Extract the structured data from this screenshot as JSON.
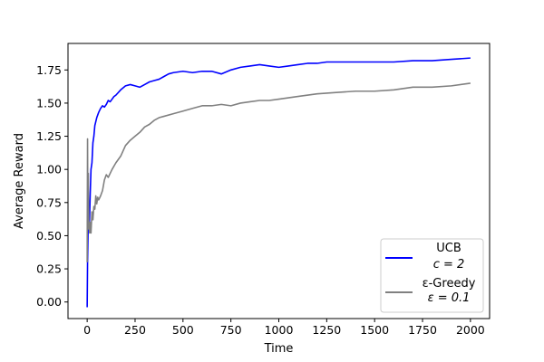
{
  "chart_data": {
    "type": "line",
    "title": "",
    "xlabel": "Time",
    "ylabel": "Average Reward",
    "xlim": [
      -100,
      2100
    ],
    "ylim": [
      -0.125,
      1.95
    ],
    "xticks": [
      0,
      250,
      500,
      750,
      1000,
      1250,
      1500,
      1750,
      2000
    ],
    "xtick_labels": [
      "0",
      "250",
      "500",
      "750",
      "1000",
      "1250",
      "1500",
      "1750",
      "2000"
    ],
    "yticks": [
      0.0,
      0.25,
      0.5,
      0.75,
      1.0,
      1.25,
      1.5,
      1.75
    ],
    "ytick_labels": [
      "0.00",
      "0.25",
      "0.50",
      "0.75",
      "1.00",
      "1.25",
      "1.50",
      "1.75"
    ],
    "grid": false,
    "legend_position": "lower-right",
    "series": [
      {
        "name": "UCB",
        "legend_sub": "c = 2",
        "color": "#0000ff",
        "x": [
          0,
          2,
          5,
          8,
          12,
          16,
          20,
          25,
          30,
          35,
          40,
          50,
          60,
          70,
          80,
          90,
          100,
          110,
          120,
          130,
          140,
          150,
          175,
          200,
          225,
          250,
          275,
          300,
          325,
          350,
          375,
          400,
          425,
          450,
          500,
          550,
          600,
          650,
          700,
          750,
          800,
          850,
          900,
          950,
          1000,
          1050,
          1100,
          1150,
          1200,
          1250,
          1300,
          1400,
          1500,
          1600,
          1700,
          1800,
          1900,
          2000
        ],
        "y": [
          -0.04,
          0.3,
          0.55,
          0.7,
          0.6,
          0.82,
          1.0,
          1.05,
          1.2,
          1.25,
          1.33,
          1.39,
          1.43,
          1.46,
          1.48,
          1.47,
          1.49,
          1.52,
          1.51,
          1.53,
          1.55,
          1.56,
          1.6,
          1.63,
          1.64,
          1.63,
          1.62,
          1.64,
          1.66,
          1.67,
          1.68,
          1.7,
          1.72,
          1.73,
          1.74,
          1.73,
          1.74,
          1.74,
          1.72,
          1.75,
          1.77,
          1.78,
          1.79,
          1.78,
          1.77,
          1.78,
          1.79,
          1.8,
          1.8,
          1.81,
          1.81,
          1.81,
          1.81,
          1.81,
          1.82,
          1.82,
          1.83,
          1.84
        ]
      },
      {
        "name": "ε-Greedy",
        "legend_sub": "ε = 0.1",
        "color": "#808080",
        "x": [
          0,
          2,
          4,
          6,
          8,
          10,
          13,
          16,
          20,
          25,
          30,
          35,
          40,
          45,
          50,
          55,
          60,
          70,
          80,
          90,
          100,
          110,
          120,
          130,
          150,
          175,
          200,
          225,
          250,
          275,
          300,
          325,
          350,
          375,
          400,
          450,
          500,
          550,
          600,
          650,
          700,
          750,
          800,
          850,
          900,
          950,
          1000,
          1100,
          1200,
          1300,
          1400,
          1500,
          1600,
          1700,
          1800,
          1900,
          2000
        ],
        "y": [
          0.3,
          1.23,
          0.55,
          0.97,
          0.62,
          0.58,
          0.52,
          0.6,
          0.52,
          0.68,
          0.62,
          0.72,
          0.7,
          0.8,
          0.74,
          0.79,
          0.77,
          0.8,
          0.84,
          0.92,
          0.96,
          0.94,
          0.97,
          1.0,
          1.05,
          1.1,
          1.18,
          1.22,
          1.25,
          1.28,
          1.32,
          1.34,
          1.37,
          1.39,
          1.4,
          1.42,
          1.44,
          1.46,
          1.48,
          1.48,
          1.49,
          1.48,
          1.5,
          1.51,
          1.52,
          1.52,
          1.53,
          1.55,
          1.57,
          1.58,
          1.59,
          1.59,
          1.6,
          1.62,
          1.62,
          1.63,
          1.65
        ]
      }
    ]
  }
}
